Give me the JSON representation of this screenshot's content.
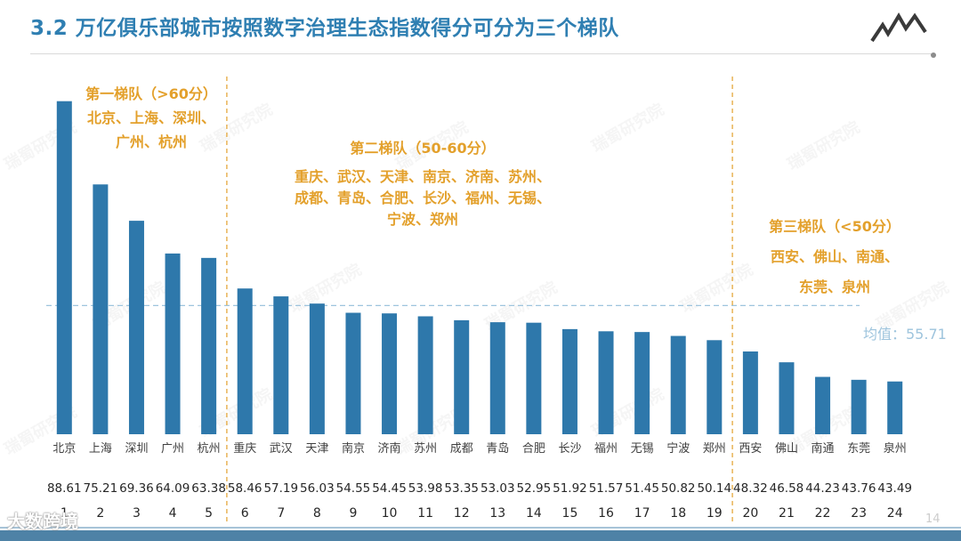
{
  "title": "3.2 万亿俱乐部城市按照数字治理生态指数得分可分为三个梯队",
  "page_number": "14",
  "brand": "大数跨境",
  "watermark": "瑞蜀研究院",
  "mean_label": "均值：55.71",
  "tiers": [
    {
      "title": "第一梯队（>60分）",
      "cities_lines": [
        "北京、上海、深圳、",
        "广州、杭州"
      ]
    },
    {
      "title": "第二梯队（50-60分）",
      "cities_lines": [
        "重庆、武汉、天津、南京、济南、苏州、",
        "成都、青岛、合肥、长沙、福州、无锡、",
        "宁波、郑州"
      ]
    },
    {
      "title": "第三梯队（<50分）",
      "cities_lines": [
        "西安、佛山、南通、",
        "东莞、泉州"
      ]
    }
  ],
  "colors": {
    "title": "#2f7fb2",
    "bar": "#2e78ab",
    "tier_text": "#e3a02b",
    "mean_line": "#9ec4dd",
    "divider": "#e3a02b"
  },
  "chart_data": {
    "type": "bar",
    "categories": [
      "北京",
      "上海",
      "深圳",
      "广州",
      "杭州",
      "重庆",
      "武汉",
      "天津",
      "南京",
      "济南",
      "苏州",
      "成都",
      "青岛",
      "合肥",
      "长沙",
      "福州",
      "无锡",
      "宁波",
      "郑州",
      "西安",
      "佛山",
      "南通",
      "东莞",
      "泉州"
    ],
    "values": [
      88.61,
      75.21,
      69.36,
      64.09,
      63.38,
      58.46,
      57.19,
      56.03,
      54.55,
      54.45,
      53.98,
      53.35,
      53.03,
      52.95,
      51.92,
      51.57,
      51.45,
      50.82,
      50.14,
      48.32,
      46.58,
      44.23,
      43.76,
      43.49
    ],
    "value_labels": [
      "88.61",
      "75.21",
      "69.36",
      "64.09",
      "63.38",
      "58.46",
      "57.19",
      "56.03",
      "54.55",
      "54.45",
      "53.98",
      "53.35",
      "53.03",
      "52.95",
      "51.92",
      "51.57",
      "51.45",
      "50.82",
      "50.14",
      "48.32",
      "46.58",
      "44.23",
      "43.76",
      "43.49"
    ],
    "ranks": [
      "1",
      "2",
      "3",
      "4",
      "5",
      "6",
      "7",
      "8",
      "9",
      "10",
      "11",
      "12",
      "13",
      "14",
      "15",
      "16",
      "17",
      "18",
      "19",
      "20",
      "21",
      "22",
      "23",
      "24"
    ],
    "mean": 55.71,
    "ylim": [
      35,
      90
    ],
    "tier_boundaries_after_index": [
      4,
      18
    ],
    "grid": false,
    "title": "",
    "xlabel": "",
    "ylabel": ""
  }
}
